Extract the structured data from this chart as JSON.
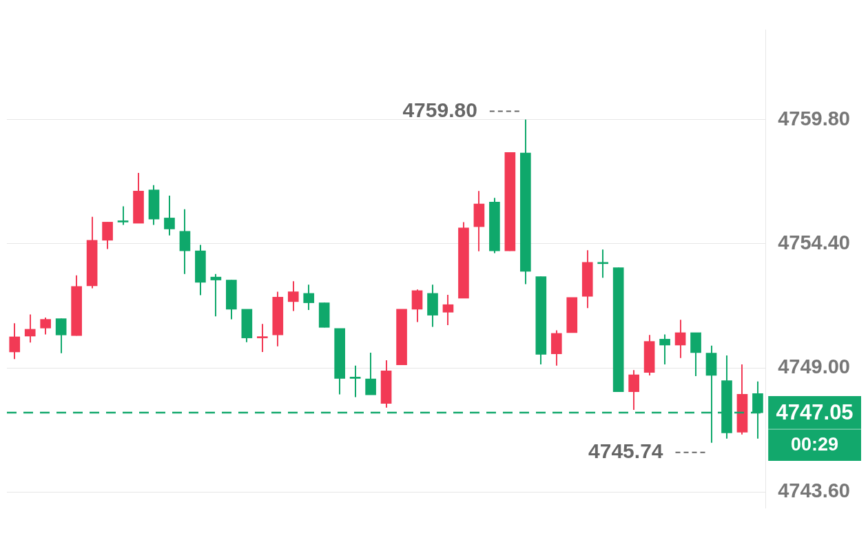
{
  "chart_data": {
    "type": "candlestick",
    "categories": [
      null,
      null,
      null,
      null,
      null,
      null,
      null,
      null,
      null,
      null,
      null,
      null,
      null,
      null,
      null,
      null,
      null,
      null,
      null,
      null,
      null,
      null,
      null,
      null,
      null,
      null,
      null,
      null,
      null,
      null,
      null,
      null,
      null,
      null,
      null,
      null,
      null,
      null,
      null,
      null,
      null,
      null,
      null,
      null,
      null,
      null,
      null,
      null,
      null
    ],
    "ohlc": [
      [
        4749.69,
        4750.94,
        4749.38,
        4750.35
      ],
      [
        4750.38,
        4751.32,
        4750.1,
        4750.68
      ],
      [
        4750.73,
        4751.19,
        4750.45,
        4751.11
      ],
      [
        4751.14,
        4751.14,
        4749.64,
        4750.43
      ],
      [
        4750.4,
        4753.02,
        4750.4,
        4752.54
      ],
      [
        4752.57,
        4755.57,
        4752.46,
        4754.55
      ],
      [
        4754.55,
        4755.34,
        4754.17,
        4755.34
      ],
      [
        4755.34,
        4756.03,
        4755.22,
        4755.34
      ],
      [
        4755.29,
        4757.48,
        4755.29,
        4756.69
      ],
      [
        4756.74,
        4756.95,
        4755.22,
        4755.47
      ],
      [
        4755.52,
        4756.49,
        4754.76,
        4755.04
      ],
      [
        4754.94,
        4755.9,
        4753.08,
        4754.09
      ],
      [
        4754.09,
        4754.35,
        4752.16,
        4752.72
      ],
      [
        4752.95,
        4753.08,
        4751.24,
        4752.82
      ],
      [
        4752.82,
        4752.82,
        4751.11,
        4751.55
      ],
      [
        4751.55,
        4751.55,
        4750.12,
        4750.3
      ],
      [
        4750.3,
        4750.91,
        4749.69,
        4750.3
      ],
      [
        4750.43,
        4752.31,
        4749.94,
        4752.08
      ],
      [
        4751.88,
        4752.77,
        4751.47,
        4752.31
      ],
      [
        4752.24,
        4752.62,
        4751.52,
        4751.83
      ],
      [
        4751.83,
        4751.83,
        4750.76,
        4750.76
      ],
      [
        4750.71,
        4750.71,
        4747.85,
        4748.54
      ],
      [
        4748.54,
        4749.1,
        4747.73,
        4748.54
      ],
      [
        4748.52,
        4749.66,
        4747.83,
        4747.83
      ],
      [
        4747.45,
        4749.33,
        4747.27,
        4748.87
      ],
      [
        4749.13,
        4751.55,
        4749.13,
        4751.55
      ],
      [
        4751.55,
        4752.41,
        4750.99,
        4752.36
      ],
      [
        4752.24,
        4752.62,
        4750.78,
        4751.29
      ],
      [
        4751.42,
        4752.18,
        4750.86,
        4751.75
      ],
      [
        4752.03,
        4755.34,
        4752.03,
        4755.09
      ],
      [
        4755.14,
        4756.69,
        4754.07,
        4756.13
      ],
      [
        4756.21,
        4756.39,
        4753.99,
        4754.09
      ],
      [
        4754.09,
        4758.37,
        4754.09,
        4758.37
      ],
      [
        4758.35,
        4759.8,
        4752.64,
        4753.2
      ],
      [
        4752.97,
        4752.97,
        4749.15,
        4749.59
      ],
      [
        4749.61,
        4750.63,
        4749.1,
        4750.5
      ],
      [
        4750.53,
        4752.06,
        4750.53,
        4752.06
      ],
      [
        4752.11,
        4754.12,
        4751.6,
        4753.59
      ],
      [
        4753.53,
        4754.15,
        4752.92,
        4753.53
      ],
      [
        4753.36,
        4753.36,
        4747.96,
        4747.96
      ],
      [
        4747.96,
        4748.9,
        4747.17,
        4748.7
      ],
      [
        4748.8,
        4750.43,
        4748.67,
        4750.15
      ],
      [
        4750.25,
        4750.45,
        4749.15,
        4749.99
      ],
      [
        4749.99,
        4751.09,
        4749.43,
        4750.53
      ],
      [
        4750.53,
        4750.53,
        4748.64,
        4749.66
      ],
      [
        4749.64,
        4749.97,
        4745.74,
        4748.67
      ],
      [
        4748.44,
        4749.54,
        4745.92,
        4746.17
      ],
      [
        4746.2,
        4749.15,
        4746.1,
        4747.85
      ],
      [
        4747.88,
        4748.41,
        4745.92,
        4747.05
      ]
    ],
    "colors": [
      "#f23a55",
      "#f23a55",
      "#f23a55",
      "#0fa86b",
      "#f23a55",
      "#f23a55",
      "#f23a55",
      "#0fa86b",
      "#f23a55",
      "#0fa86b",
      "#0fa86b",
      "#0fa86b",
      "#0fa86b",
      "#0fa86b",
      "#0fa86b",
      "#0fa86b",
      "#f23a55",
      "#f23a55",
      "#f23a55",
      "#0fa86b",
      "#0fa86b",
      "#0fa86b",
      "#0fa86b",
      "#0fa86b",
      "#f23a55",
      "#f23a55",
      "#f23a55",
      "#0fa86b",
      "#f23a55",
      "#f23a55",
      "#f23a55",
      "#0fa86b",
      "#f23a55",
      "#0fa86b",
      "#0fa86b",
      "#f23a55",
      "#f23a55",
      "#f23a55",
      "#0fa86b",
      "#0fa86b",
      "#f23a55",
      "#f23a55",
      "#0fa86b",
      "#f23a55",
      "#0fa86b",
      "#0fa86b",
      "#0fa86b",
      "#f23a55",
      "#0fa86b"
    ],
    "ylim": [
      4742.9,
      4763.7
    ],
    "yticks": [
      {
        "value": 4743.6,
        "label": "4743.60"
      },
      {
        "value": 4749,
        "label": "4749.00"
      },
      {
        "value": 4754.4,
        "label": "4754.40"
      },
      {
        "value": 4759.8,
        "label": "4759.80"
      }
    ],
    "grid": "y",
    "tick_labels": "y",
    "ref_lines": [
      {
        "axis": "y",
        "value": 4747.05,
        "label": "4747.05",
        "color": "#12a86c",
        "line_style": "dashed"
      }
    ],
    "annotations": [
      "4759.80",
      "4745.74",
      "00:29"
    ]
  }
}
